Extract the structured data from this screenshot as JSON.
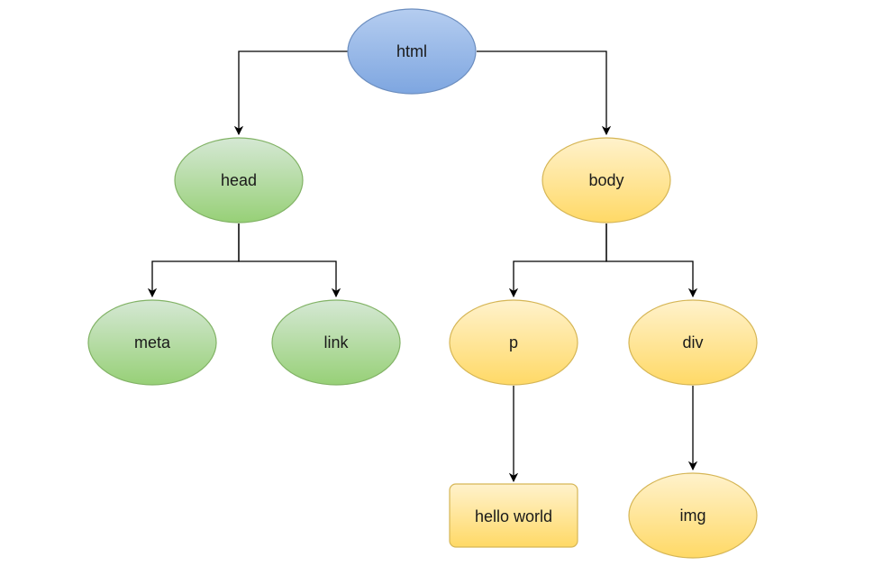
{
  "diagram": {
    "nodes": {
      "html": {
        "label": "html",
        "shape": "ellipse",
        "theme": "blue"
      },
      "head": {
        "label": "head",
        "shape": "ellipse",
        "theme": "green"
      },
      "body": {
        "label": "body",
        "shape": "ellipse",
        "theme": "yellow"
      },
      "meta": {
        "label": "meta",
        "shape": "ellipse",
        "theme": "green"
      },
      "link": {
        "label": "link",
        "shape": "ellipse",
        "theme": "green"
      },
      "p": {
        "label": "p",
        "shape": "ellipse",
        "theme": "yellow"
      },
      "div": {
        "label": "div",
        "shape": "ellipse",
        "theme": "yellow"
      },
      "hello_world": {
        "label": "hello world",
        "shape": "rounded-rectangle",
        "theme": "yellow"
      },
      "img": {
        "label": "img",
        "shape": "ellipse",
        "theme": "yellow"
      }
    },
    "edges": [
      {
        "from": "html",
        "to": "head"
      },
      {
        "from": "html",
        "to": "body"
      },
      {
        "from": "head",
        "to": "meta"
      },
      {
        "from": "head",
        "to": "link"
      },
      {
        "from": "body",
        "to": "p"
      },
      {
        "from": "body",
        "to": "div"
      },
      {
        "from": "p",
        "to": "hello_world"
      },
      {
        "from": "div",
        "to": "img"
      }
    ],
    "colors": {
      "blue_top": "#b5cdf0",
      "blue_bottom": "#7ea6e0",
      "blue_stroke": "#6c8ebf",
      "green_top": "#d5e8d4",
      "green_bottom": "#97d077",
      "green_stroke": "#82b366",
      "yellow_top": "#fff2cc",
      "yellow_bottom": "#ffd966",
      "yellow_stroke": "#d6b656",
      "edge": "#000000"
    }
  }
}
